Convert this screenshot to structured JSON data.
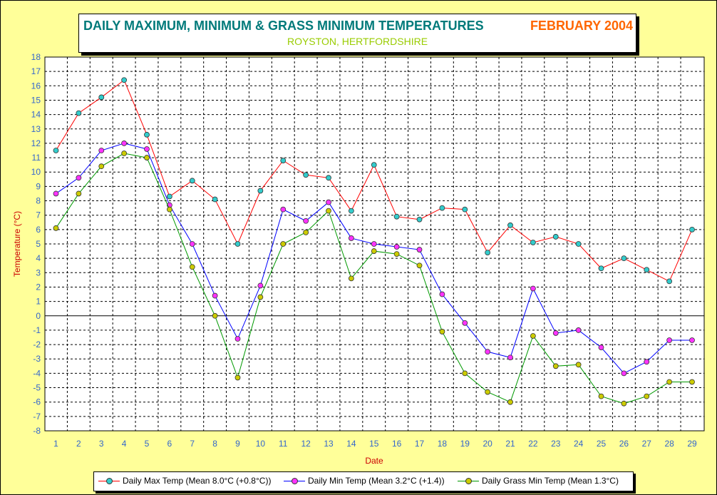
{
  "title": {
    "main": "DAILY MAXIMUM, MINIMUM & GRASS MINIMUM TEMPERATURES",
    "date": "FEBRUARY 2004",
    "subtitle": "ROYSTON, HERTFORDSHIRE"
  },
  "legend": [
    {
      "label": "Daily Max Temp (Mean 8.0°C (+0.8°C))",
      "line_color": "#ff0000",
      "marker_color": "#33cccc"
    },
    {
      "label": "Daily Min Temp (Mean 3.2°C (+1.4))",
      "line_color": "#0000ff",
      "marker_color": "#ff33ff"
    },
    {
      "label": "Daily Grass Min Temp (Mean 1.3°C)",
      "line_color": "#009900",
      "marker_color": "#cccc00"
    }
  ],
  "chart_data": {
    "type": "line",
    "title": "DAILY MAXIMUM, MINIMUM & GRASS MINIMUM TEMPERATURES",
    "subtitle": "ROYSTON, HERTFORDSHIRE",
    "xlabel": "Date",
    "ylabel": "Temperature (°C)",
    "ylim": [
      -8,
      18
    ],
    "grid": true,
    "legend_position": "bottom",
    "x": [
      1,
      2,
      3,
      4,
      5,
      6,
      7,
      8,
      9,
      10,
      11,
      12,
      13,
      14,
      15,
      16,
      17,
      18,
      19,
      20,
      21,
      22,
      23,
      24,
      25,
      26,
      27,
      28,
      29
    ],
    "series": [
      {
        "name": "Daily Max Temp (Mean 8.0°C (+0.8°C))",
        "color": "#ff0000",
        "values": [
          11.5,
          14.1,
          15.2,
          16.4,
          12.6,
          8.3,
          9.4,
          8.1,
          5.0,
          8.7,
          10.8,
          9.8,
          9.6,
          7.3,
          10.5,
          6.9,
          6.7,
          7.5,
          7.4,
          4.4,
          6.3,
          5.1,
          5.5,
          5.0,
          3.3,
          4.0,
          3.2,
          2.4,
          6.0
        ]
      },
      {
        "name": "Daily Min Temp (Mean 3.2°C (+1.4))",
        "color": "#0000ff",
        "values": [
          8.5,
          9.6,
          11.5,
          12.0,
          11.6,
          7.7,
          5.0,
          1.4,
          -1.6,
          2.1,
          7.4,
          6.6,
          7.9,
          5.4,
          5.0,
          4.8,
          4.6,
          1.5,
          -0.5,
          -2.5,
          -2.9,
          1.9,
          -1.2,
          -1.0,
          -2.2,
          -4.0,
          -3.2,
          -1.7,
          -1.7
        ]
      },
      {
        "name": "Daily Grass Min Temp (Mean 1.3°C)",
        "color": "#009900",
        "values": [
          6.1,
          8.5,
          10.4,
          11.3,
          11.0,
          7.4,
          3.4,
          0.0,
          -4.3,
          1.3,
          5.0,
          5.8,
          7.3,
          2.6,
          4.5,
          4.3,
          3.5,
          -1.1,
          -4.0,
          -5.3,
          -6.0,
          -1.4,
          -3.5,
          -3.4,
          -5.6,
          -6.1,
          -5.6,
          -4.6,
          -4.6
        ]
      }
    ]
  }
}
